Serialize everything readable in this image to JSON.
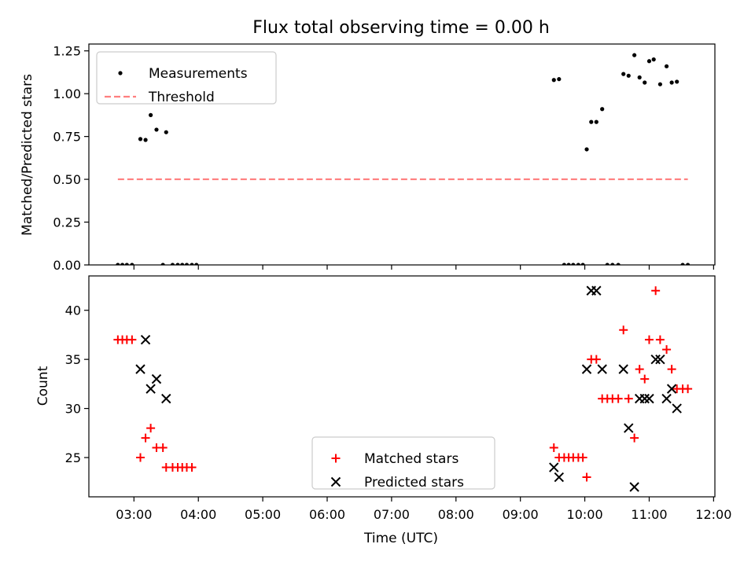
{
  "title": "Flux total observing time = 0.00 h",
  "chart_data": [
    {
      "type": "scatter",
      "ylabel": "Matched/Predicted stars",
      "xlim": [
        2.3,
        12.02
      ],
      "ylim": [
        0,
        1.29
      ],
      "yticks": [
        0,
        0.25,
        0.5,
        0.75,
        1.0,
        1.25
      ],
      "ytick_labels": [
        "0.00",
        "0.25",
        "0.50",
        "0.75",
        "1.00",
        "1.25"
      ],
      "grid": false,
      "legend": "top-left",
      "series": [
        {
          "name": "Measurements",
          "marker": "dot",
          "color": "#000000",
          "x": [
            2.75,
            2.82,
            2.89,
            2.97,
            3.1,
            3.18,
            3.26,
            3.35,
            3.45,
            3.5,
            3.6,
            3.68,
            3.75,
            3.82,
            3.9,
            3.97,
            9.52,
            9.6,
            9.68,
            9.75,
            9.82,
            9.9,
            9.97,
            10.03,
            10.1,
            10.18,
            10.27,
            10.35,
            10.43,
            10.52,
            10.6,
            10.68,
            10.77,
            10.85,
            10.93,
            11.0,
            11.07,
            11.17,
            11.27,
            11.35,
            11.43,
            11.52,
            11.6
          ],
          "y": [
            0,
            0,
            0,
            0,
            0.735,
            0.73,
            0.875,
            0.79,
            0,
            0.775,
            0,
            0,
            0,
            0,
            0,
            0,
            1.08,
            1.085,
            0,
            0,
            0,
            0,
            0,
            0.675,
            0.835,
            0.835,
            0.91,
            0,
            0,
            0,
            1.115,
            1.105,
            1.225,
            1.095,
            1.065,
            1.19,
            1.2,
            1.055,
            1.16,
            1.065,
            1.07,
            0,
            0
          ]
        },
        {
          "name": "Threshold",
          "marker": "dashed-line",
          "color": "#ff7f7f",
          "x": [
            2.75,
            11.6
          ],
          "y": [
            0.5,
            0.5
          ]
        }
      ]
    },
    {
      "type": "scatter",
      "xlabel": "Time (UTC)",
      "ylabel": "Count",
      "xlim": [
        2.3,
        12.02
      ],
      "ylim": [
        21,
        43.5
      ],
      "yticks": [
        25,
        30,
        35,
        40
      ],
      "ytick_labels": [
        "25",
        "30",
        "35",
        "40"
      ],
      "xticks": [
        3,
        4,
        5,
        6,
        7,
        8,
        9,
        10,
        11,
        12
      ],
      "xtick_labels": [
        "03:00",
        "04:00",
        "05:00",
        "06:00",
        "07:00",
        "08:00",
        "09:00",
        "10:00",
        "11:00",
        "12:00"
      ],
      "grid": false,
      "legend": "bottom-center",
      "series": [
        {
          "name": "Matched stars",
          "marker": "plus",
          "color": "#ff0000",
          "x": [
            2.75,
            2.82,
            2.89,
            2.97,
            3.1,
            3.18,
            3.26,
            3.35,
            3.45,
            3.5,
            3.6,
            3.68,
            3.75,
            3.82,
            3.9,
            9.52,
            9.6,
            9.68,
            9.75,
            9.82,
            9.9,
            9.97,
            10.03,
            10.1,
            10.18,
            10.27,
            10.35,
            10.43,
            10.52,
            10.6,
            10.68,
            10.77,
            10.85,
            10.93,
            11.0,
            11.1,
            11.17,
            11.27,
            11.35,
            11.43,
            11.52,
            11.6
          ],
          "y": [
            37,
            37,
            37,
            37,
            25,
            27,
            28,
            26,
            26,
            24,
            24,
            24,
            24,
            24,
            24,
            26,
            25,
            25,
            25,
            25,
            25,
            25,
            23,
            35,
            35,
            31,
            31,
            31,
            31,
            38,
            31,
            27,
            34,
            33,
            37,
            42,
            37,
            36,
            34,
            32,
            32,
            32
          ]
        },
        {
          "name": "Predicted stars",
          "marker": "x",
          "color": "#000000",
          "x": [
            3.1,
            3.18,
            3.26,
            3.35,
            3.5,
            9.52,
            9.6,
            10.03,
            10.1,
            10.18,
            10.27,
            10.6,
            10.68,
            10.77,
            10.85,
            10.93,
            11.0,
            11.1,
            11.17,
            11.27,
            11.35,
            11.43
          ],
          "y": [
            34,
            37,
            32,
            33,
            31,
            24,
            23,
            34,
            42,
            42,
            34,
            34,
            28,
            22,
            31,
            31,
            31,
            35,
            35,
            31,
            32,
            30
          ]
        }
      ]
    }
  ]
}
